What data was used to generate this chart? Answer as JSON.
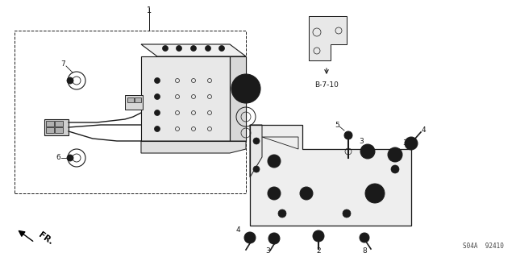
{
  "bg_color": "#ffffff",
  "line_color": "#1a1a1a",
  "fig_width": 6.4,
  "fig_height": 3.19,
  "dpi": 100,
  "bottom_left_text": "FR.",
  "bottom_right_text": "S04A  92410",
  "ref_label": "B-7-10"
}
